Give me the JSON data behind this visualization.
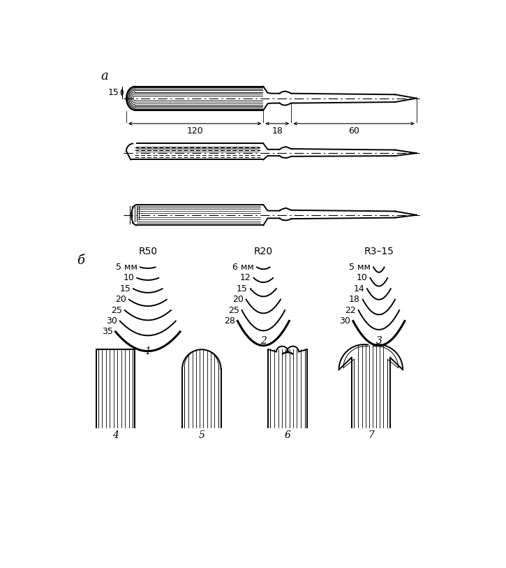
{
  "bg_color": "#ffffff",
  "label_a": "а",
  "label_b": "б",
  "dim_15": "15",
  "dim_120": "120",
  "dim_18": "18",
  "dim_60": "60",
  "r50_label": "R50",
  "r20_label": "R20",
  "r3_15_label": "R3–15",
  "group1_labels": [
    "5 мм",
    "10",
    "15",
    "20",
    "25",
    "30",
    "35"
  ],
  "group2_labels": [
    "6 мм",
    "12",
    "15",
    "20",
    "25",
    "28"
  ],
  "group3_labels": [
    "5 мм",
    "10",
    "14",
    "18",
    "22",
    "30"
  ],
  "num_labels": [
    "1",
    "2",
    "3",
    "4",
    "5",
    "6",
    "7"
  ],
  "line_color": "#000000"
}
